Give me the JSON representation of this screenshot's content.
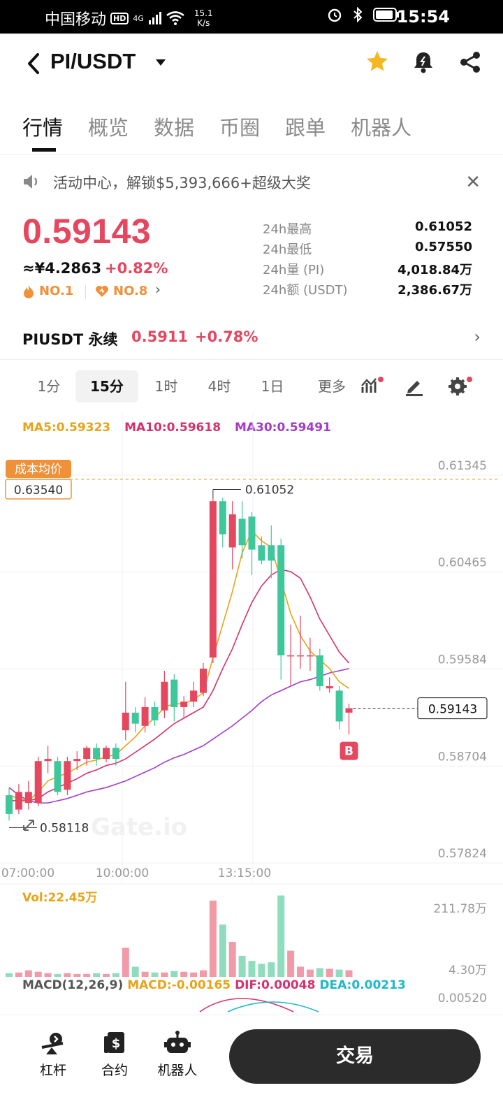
{
  "status_bar": {
    "carrier": "中国移动",
    "hd": "HD",
    "network": "4G",
    "speed_value": "15.1",
    "speed_unit": "K/s",
    "time": "15:54"
  },
  "header": {
    "pair": "PI/USDT"
  },
  "tabs": [
    {
      "label": "行情"
    },
    {
      "label": "概览"
    },
    {
      "label": "数据"
    },
    {
      "label": "币圈"
    },
    {
      "label": "跟单"
    },
    {
      "label": "机器人"
    }
  ],
  "announcement": {
    "text": "活动中心，解锁$5,393,666+超级大奖"
  },
  "ticker": {
    "price": "0.59143",
    "cny": "≈¥4.2863",
    "change": "+0.82%",
    "rank1": "NO.1",
    "rank2": "NO.8",
    "stats": [
      {
        "label": "24h最高",
        "value": "0.61052"
      },
      {
        "label": "24h最低",
        "value": "0.57550"
      },
      {
        "label": "24h量 (PI)",
        "value": "4,018.84万"
      },
      {
        "label": "24h额 (USDT)",
        "value": "2,386.67万"
      }
    ]
  },
  "perpetual": {
    "name": "PIUSDT 永续",
    "price": "0.5911",
    "change": "+0.78%"
  },
  "intervals": {
    "items": [
      "1分",
      "15分",
      "1时",
      "4时",
      "1日",
      "更多"
    ],
    "active": "15分"
  },
  "ma": {
    "ma5": "MA5:0.59323",
    "ma10": "MA10:0.59618",
    "ma30": "MA30:0.59491"
  },
  "chart_data": {
    "type": "candlestick",
    "y_axis_ticks": [
      "0.61345",
      "0.60465",
      "0.59584",
      "0.58704",
      "0.57824"
    ],
    "y_axis_values": [
      0.61345,
      0.60465,
      0.59584,
      0.58704,
      0.57824
    ],
    "x_axis_ticks": [
      "07:00:00",
      "10:00:00",
      "13:15:00"
    ],
    "cost_label": "成本均价",
    "cost_value": "0.63540",
    "high_label": "0.61052",
    "low_label": "0.58118",
    "current_price": "0.59143",
    "marker": "B",
    "candles": [
      {
        "o": 0.5835,
        "c": 0.5818,
        "h": 0.5842,
        "l": 0.5812
      },
      {
        "o": 0.5822,
        "c": 0.5838,
        "h": 0.5845,
        "l": 0.5818
      },
      {
        "o": 0.5828,
        "c": 0.5838,
        "h": 0.5848,
        "l": 0.5822
      },
      {
        "o": 0.5828,
        "c": 0.5866,
        "h": 0.587,
        "l": 0.5825
      },
      {
        "o": 0.5866,
        "c": 0.5868,
        "h": 0.588,
        "l": 0.5855
      },
      {
        "o": 0.5866,
        "c": 0.5838,
        "h": 0.587,
        "l": 0.5835
      },
      {
        "o": 0.584,
        "c": 0.5866,
        "h": 0.587,
        "l": 0.5835
      },
      {
        "o": 0.5866,
        "c": 0.5868,
        "h": 0.5875,
        "l": 0.5858
      },
      {
        "o": 0.5868,
        "c": 0.5878,
        "h": 0.588,
        "l": 0.5862
      },
      {
        "o": 0.5878,
        "c": 0.5868,
        "h": 0.5882,
        "l": 0.5862
      },
      {
        "o": 0.5868,
        "c": 0.5878,
        "h": 0.588,
        "l": 0.5865
      },
      {
        "o": 0.5878,
        "c": 0.5868,
        "h": 0.5882,
        "l": 0.5862
      },
      {
        "o": 0.5894,
        "c": 0.591,
        "h": 0.5938,
        "l": 0.5885
      },
      {
        "o": 0.591,
        "c": 0.59,
        "h": 0.5915,
        "l": 0.5892
      },
      {
        "o": 0.5898,
        "c": 0.5915,
        "h": 0.5924,
        "l": 0.5892
      },
      {
        "o": 0.5915,
        "c": 0.5903,
        "h": 0.592,
        "l": 0.5898
      },
      {
        "o": 0.5912,
        "c": 0.5938,
        "h": 0.5948,
        "l": 0.5905
      },
      {
        "o": 0.594,
        "c": 0.5915,
        "h": 0.5945,
        "l": 0.5902
      },
      {
        "o": 0.5915,
        "c": 0.592,
        "h": 0.5925,
        "l": 0.5905
      },
      {
        "o": 0.592,
        "c": 0.593,
        "h": 0.5938,
        "l": 0.5915
      },
      {
        "o": 0.5928,
        "c": 0.595,
        "h": 0.5955,
        "l": 0.5925
      },
      {
        "o": 0.596,
        "c": 0.6102,
        "h": 0.6105,
        "l": 0.5955
      },
      {
        "o": 0.6102,
        "c": 0.6072,
        "h": 0.6105,
        "l": 0.606
      },
      {
        "o": 0.606,
        "c": 0.609,
        "h": 0.6102,
        "l": 0.604
      },
      {
        "o": 0.6086,
        "c": 0.6062,
        "h": 0.6102,
        "l": 0.605
      },
      {
        "o": 0.6088,
        "c": 0.6058,
        "h": 0.6092,
        "l": 0.6035
      },
      {
        "o": 0.6062,
        "c": 0.6048,
        "h": 0.607,
        "l": 0.6045
      },
      {
        "o": 0.6062,
        "c": 0.6048,
        "h": 0.608,
        "l": 0.6032
      },
      {
        "o": 0.6062,
        "c": 0.5962,
        "h": 0.6068,
        "l": 0.594
      },
      {
        "o": 0.5962,
        "c": 0.5962,
        "h": 0.599,
        "l": 0.5935
      },
      {
        "o": 0.5962,
        "c": 0.5962,
        "h": 0.5998,
        "l": 0.595
      },
      {
        "o": 0.5962,
        "c": 0.5962,
        "h": 0.5978,
        "l": 0.5948
      },
      {
        "o": 0.5962,
        "c": 0.5934,
        "h": 0.5968,
        "l": 0.593
      },
      {
        "o": 0.5932,
        "c": 0.5934,
        "h": 0.5942,
        "l": 0.5928
      },
      {
        "o": 0.593,
        "c": 0.5902,
        "h": 0.5934,
        "l": 0.5895
      },
      {
        "o": 0.591,
        "c": 0.5914,
        "h": 0.5918,
        "l": 0.589
      }
    ],
    "ma5_line": [
      0.5835,
      0.5832,
      0.583,
      0.5838,
      0.5848,
      0.5852,
      0.5855,
      0.586,
      0.5865,
      0.5867,
      0.587,
      0.5872,
      0.588,
      0.5888,
      0.5898,
      0.5905,
      0.5915,
      0.5918,
      0.5918,
      0.5922,
      0.5928,
      0.596,
      0.599,
      0.602,
      0.6055,
      0.6075,
      0.6066,
      0.606,
      0.603,
      0.6,
      0.598,
      0.5966,
      0.5958,
      0.595,
      0.5938,
      0.5932
    ],
    "ma10_line": [
      0.583,
      0.583,
      0.583,
      0.5832,
      0.5838,
      0.5842,
      0.5846,
      0.585,
      0.5855,
      0.5858,
      0.5862,
      0.5864,
      0.5868,
      0.5874,
      0.588,
      0.5886,
      0.5893,
      0.59,
      0.5905,
      0.591,
      0.5915,
      0.593,
      0.595,
      0.5968,
      0.599,
      0.601,
      0.6025,
      0.6035,
      0.604,
      0.6038,
      0.6032,
      0.6015,
      0.5995,
      0.598,
      0.5965,
      0.5955
    ],
    "ma30_line": [
      0.5842,
      0.5835,
      0.583,
      0.5828,
      0.5828,
      0.583,
      0.5832,
      0.5835,
      0.5838,
      0.584,
      0.5842,
      0.5845,
      0.5848,
      0.5852,
      0.5856,
      0.586,
      0.5865,
      0.5869,
      0.5872,
      0.5876,
      0.588,
      0.5886,
      0.5892,
      0.5898,
      0.5905,
      0.5912,
      0.592,
      0.5926,
      0.593,
      0.5934,
      0.5938,
      0.594,
      0.5943,
      0.5946,
      0.5948,
      0.595
    ],
    "volume_label": "Vol:22.45万",
    "volume_axis": [
      "211.78万",
      "4.30万"
    ],
    "volumes": [
      0.05,
      0.06,
      0.09,
      0.07,
      0.05,
      0.04,
      0.05,
      0.04,
      0.04,
      0.05,
      0.04,
      0.05,
      0.4,
      0.14,
      0.07,
      0.06,
      0.06,
      0.08,
      0.07,
      0.06,
      0.09,
      1.05,
      0.72,
      0.48,
      0.29,
      0.22,
      0.18,
      0.2,
      1.12,
      0.36,
      0.14,
      0.1,
      0.12,
      0.11,
      0.1,
      0.09
    ]
  },
  "macd": {
    "label": "MACD(12,26,9)",
    "macd": "MACD:-0.00165",
    "dif": "DIF:0.00048",
    "dea": "DEA:0.00213",
    "axis": "0.00520"
  },
  "colors": {
    "up": "#e5475f",
    "down": "#3ec79a",
    "ma5": "#e8a317",
    "ma10": "#d6306f",
    "ma30": "#a23cc9",
    "accent_orange": "#f0913a"
  },
  "bottom_bar": {
    "leverage": "杠杆",
    "contract": "合约",
    "robot": "机器人",
    "trade": "交易"
  }
}
